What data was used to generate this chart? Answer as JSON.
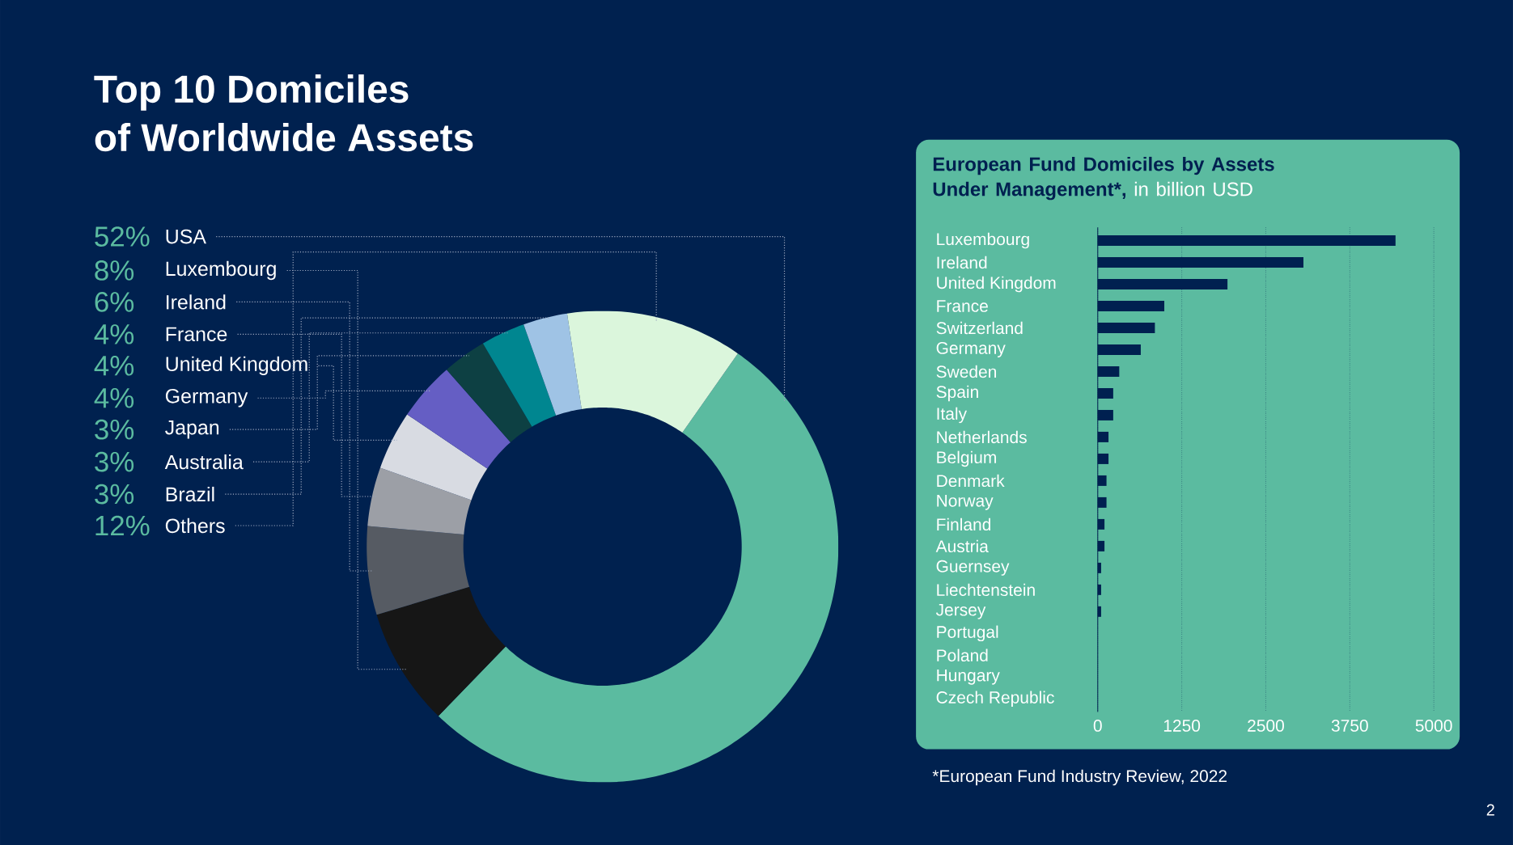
{
  "chart_data": [
    {
      "type": "donut",
      "title": "Top 10 Domiciles",
      "subtitle": "of Worldwide Assets",
      "categories": [
        "USA",
        "Luxembourg",
        "Ireland",
        "France",
        "United Kingdom",
        "Germany",
        "Japan",
        "Australia",
        "Brazil",
        "Others"
      ],
      "values": [
        52,
        8,
        6,
        4,
        4,
        4,
        3,
        3,
        3,
        12
      ],
      "value_labels": [
        "52%",
        "8%",
        "6%",
        "4%",
        "4%",
        "4%",
        "3%",
        "3%",
        "3%",
        "12%"
      ],
      "colors": [
        "#5bbba0",
        "#161616",
        "#565b63",
        "#9c9fa6",
        "#d8dbe2",
        "#655ec4",
        "#0d4043",
        "#008690",
        "#9fc3e5",
        "#dbf6dc"
      ]
    },
    {
      "type": "bar",
      "orientation": "horizontal",
      "title": "European Fund Domiciles by Assets Under Management*,",
      "subtitle": "in billion USD",
      "categories": [
        "Luxembourg",
        "Ireland",
        "United Kingdom",
        "France",
        "Switzerland",
        "Germany",
        "Sweden",
        "Spain",
        "Italy",
        "Netherlands",
        "Belgium",
        "Denmark",
        "Norway",
        "Finland",
        "Austria",
        "Guernsey",
        "Liechtenstein",
        "Jersey",
        "Portugal",
        "Poland",
        "Hungary",
        "Czech Republic"
      ],
      "values": [
        4430,
        3060,
        1930,
        990,
        850,
        640,
        320,
        230,
        230,
        160,
        160,
        130,
        130,
        100,
        100,
        50,
        50,
        50,
        0,
        0,
        0,
        0
      ],
      "color": "#002050",
      "xlim": [
        0,
        5000
      ],
      "xticks": [
        0,
        1250,
        2500,
        3750,
        5000
      ],
      "grid": "x",
      "annotations": [
        "*European Fund Industry Review, 2022",
        "2"
      ]
    }
  ]
}
